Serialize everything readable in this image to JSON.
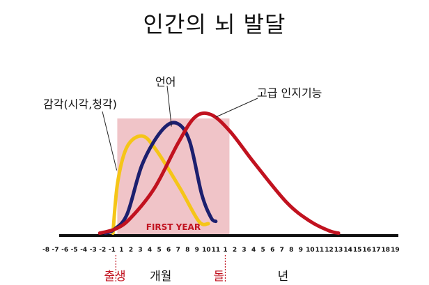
{
  "chart_data": {
    "type": "line",
    "title": "인간의 뇌 발달",
    "xlabel": "",
    "ylabel": "",
    "x_ticks": [
      "-8",
      "-7",
      "-6",
      "-5",
      "-4",
      "-3",
      "-2",
      "-1",
      "1",
      "2",
      "3",
      "4",
      "5",
      "6",
      "7",
      "8",
      "9",
      "10",
      "11",
      "1",
      "2",
      "3",
      "4",
      "5",
      "6",
      "7",
      "8",
      "9",
      "10",
      "11",
      "12",
      "13",
      "14",
      "15",
      "16",
      "17",
      "18",
      "19"
    ],
    "highlight": {
      "label": "FIRST YEAR",
      "from_tick": 8,
      "to_tick": 19,
      "color": "#f0c4c8"
    },
    "series": [
      {
        "name": "감각(시각,청각)",
        "color": "#f5c518",
        "points": [
          [
            7.1,
            0.02
          ],
          [
            7.6,
            0.45
          ],
          [
            8.6,
            0.75
          ],
          [
            10.2,
            0.84
          ],
          [
            11.7,
            0.72
          ],
          [
            14.2,
            0.4
          ],
          [
            16.2,
            0.12
          ],
          [
            17.2,
            0.1
          ]
        ]
      },
      {
        "name": "언어",
        "color": "#1c1f6e",
        "points": [
          [
            6.3,
            0.02
          ],
          [
            7.2,
            0.05
          ],
          [
            8.6,
            0.18
          ],
          [
            10.2,
            0.6
          ],
          [
            12.2,
            0.88
          ],
          [
            13.8,
            0.95
          ],
          [
            15.2,
            0.8
          ],
          [
            16.5,
            0.35
          ],
          [
            17.5,
            0.15
          ],
          [
            18.0,
            0.12
          ]
        ]
      },
      {
        "name": "고급 인지기능",
        "color": "#c1121f",
        "points": [
          [
            5.7,
            0.02
          ],
          [
            7.5,
            0.06
          ],
          [
            9.0,
            0.15
          ],
          [
            11.5,
            0.4
          ],
          [
            14.0,
            0.78
          ],
          [
            15.8,
            1.0
          ],
          [
            17.5,
            1.02
          ],
          [
            19.5,
            0.88
          ],
          [
            22.0,
            0.62
          ],
          [
            25.5,
            0.28
          ],
          [
            28.0,
            0.12
          ],
          [
            30.0,
            0.04
          ],
          [
            31.0,
            0.02
          ]
        ]
      }
    ],
    "annotations": [
      {
        "text": "감각(시각,청각)",
        "target_series": 0
      },
      {
        "text": "언어",
        "target_series": 1
      },
      {
        "text": "고급 인지기능",
        "target_series": 2
      }
    ],
    "bottom_labels": [
      {
        "text": "출생",
        "color": "#c1121f",
        "marker": true
      },
      {
        "text": "개월",
        "color": "#111111",
        "marker": false
      },
      {
        "text": "돌",
        "color": "#c1121f",
        "marker": true
      },
      {
        "text": "년",
        "color": "#111111",
        "marker": false
      }
    ]
  }
}
